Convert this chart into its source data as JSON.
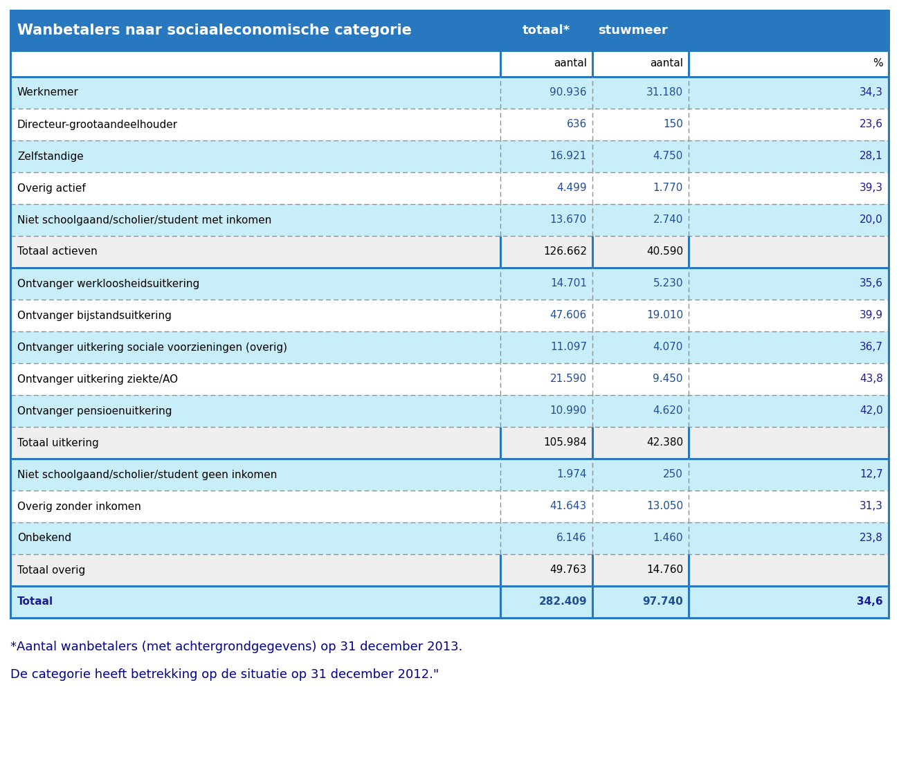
{
  "header_col1": "Wanbetalers naar sociaaleconomische categorie",
  "header_col2": "totaal*",
  "header_col3": "stuwmeer",
  "rows": [
    {
      "label": "Werknemer",
      "totaal": "90.936",
      "stuwmeer": "31.180",
      "pct": "34,3",
      "type": "data_light"
    },
    {
      "label": "Directeur-grootaandeelhouder",
      "totaal": "636",
      "stuwmeer": "150",
      "pct": "23,6",
      "type": "data_white"
    },
    {
      "label": "Zelfstandige",
      "totaal": "16.921",
      "stuwmeer": "4.750",
      "pct": "28,1",
      "type": "data_light"
    },
    {
      "label": "Overig actief",
      "totaal": "4.499",
      "stuwmeer": "1.770",
      "pct": "39,3",
      "type": "data_white"
    },
    {
      "label": "Niet schoolgaand/scholier/student met inkomen",
      "totaal": "13.670",
      "stuwmeer": "2.740",
      "pct": "20,0",
      "type": "data_light"
    },
    {
      "label": "Totaal actieven",
      "totaal": "126.662",
      "stuwmeer": "40.590",
      "pct": "",
      "type": "subtotal"
    },
    {
      "label": "Ontvanger werkloosheidsuitkering",
      "totaal": "14.701",
      "stuwmeer": "5.230",
      "pct": "35,6",
      "type": "data_light"
    },
    {
      "label": "Ontvanger bijstandsuitkering",
      "totaal": "47.606",
      "stuwmeer": "19.010",
      "pct": "39,9",
      "type": "data_white"
    },
    {
      "label": "Ontvanger uitkering sociale voorzieningen (overig)",
      "totaal": "11.097",
      "stuwmeer": "4.070",
      "pct": "36,7",
      "type": "data_light"
    },
    {
      "label": "Ontvanger uitkering ziekte/AO",
      "totaal": "21.590",
      "stuwmeer": "9.450",
      "pct": "43,8",
      "type": "data_white"
    },
    {
      "label": "Ontvanger pensioenuitkering",
      "totaal": "10.990",
      "stuwmeer": "4.620",
      "pct": "42,0",
      "type": "data_light"
    },
    {
      "label": "Totaal uitkering",
      "totaal": "105.984",
      "stuwmeer": "42.380",
      "pct": "",
      "type": "subtotal"
    },
    {
      "label": "Niet schoolgaand/scholier/student geen inkomen",
      "totaal": "1.974",
      "stuwmeer": "250",
      "pct": "12,7",
      "type": "data_light"
    },
    {
      "label": "Overig zonder inkomen",
      "totaal": "41.643",
      "stuwmeer": "13.050",
      "pct": "31,3",
      "type": "data_white"
    },
    {
      "label": "Onbekend",
      "totaal": "6.146",
      "stuwmeer": "1.460",
      "pct": "23,8",
      "type": "data_light"
    },
    {
      "label": "Totaal overig",
      "totaal": "49.763",
      "stuwmeer": "14.760",
      "pct": "",
      "type": "subtotal"
    },
    {
      "label": "Totaal",
      "totaal": "282.409",
      "stuwmeer": "97.740",
      "pct": "34,6",
      "type": "total"
    }
  ],
  "footnote_line1": "*Aantal wanbetalers (met achtergrondgegevens) op 31 december 2013.",
  "footnote_line2": "De categorie heeft betrekking op de situatie op 31 december 2012.\"",
  "colors": {
    "header_bg": "#2878C0",
    "header_text": "#FFFFFF",
    "light_row_bg": "#C8EEFA",
    "white_row_bg": "#FFFFFF",
    "subtotal_bg": "#EFEFEF",
    "border_strong": "#2878C0",
    "border_dotted": "#909090",
    "num_blue": "#1F4E96",
    "pct_blue": "#1C1C96",
    "label_total": "#1C1C96",
    "footnote_color": "#00008B",
    "subheader_bg": "#FFFFFF"
  },
  "figsize": [
    12.99,
    11.1
  ],
  "dpi": 100
}
